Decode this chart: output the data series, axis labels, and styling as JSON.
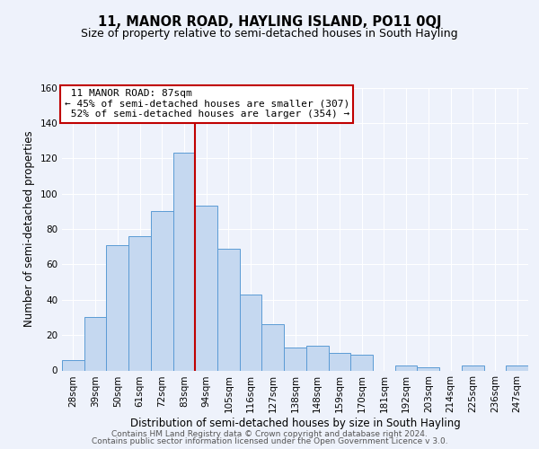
{
  "title": "11, MANOR ROAD, HAYLING ISLAND, PO11 0QJ",
  "subtitle": "Size of property relative to semi-detached houses in South Hayling",
  "xlabel": "Distribution of semi-detached houses by size in South Hayling",
  "ylabel": "Number of semi-detached properties",
  "footer_line1": "Contains HM Land Registry data © Crown copyright and database right 2024.",
  "footer_line2": "Contains public sector information licensed under the Open Government Licence v 3.0.",
  "categories": [
    "28sqm",
    "39sqm",
    "50sqm",
    "61sqm",
    "72sqm",
    "83sqm",
    "94sqm",
    "105sqm",
    "116sqm",
    "127sqm",
    "138sqm",
    "148sqm",
    "159sqm",
    "170sqm",
    "181sqm",
    "192sqm",
    "203sqm",
    "214sqm",
    "225sqm",
    "236sqm",
    "247sqm"
  ],
  "values": [
    6,
    30,
    71,
    76,
    90,
    123,
    93,
    69,
    43,
    26,
    13,
    14,
    10,
    9,
    0,
    3,
    2,
    0,
    3,
    0,
    3
  ],
  "bar_color": "#c5d8f0",
  "bar_edge_color": "#5b9bd5",
  "property_label": "11 MANOR ROAD: 87sqm",
  "pct_smaller": 45,
  "count_smaller": 307,
  "pct_larger": 52,
  "count_larger": 354,
  "vline_color": "#c00000",
  "vline_x_index": 5.5,
  "annotation_box_edge_color": "#c00000",
  "ylim": [
    0,
    160
  ],
  "yticks": [
    0,
    20,
    40,
    60,
    80,
    100,
    120,
    140,
    160
  ],
  "background_color": "#eef2fb",
  "grid_color": "#ffffff",
  "title_fontsize": 10.5,
  "subtitle_fontsize": 9,
  "axis_label_fontsize": 8.5,
  "tick_fontsize": 7.5,
  "annotation_fontsize": 8,
  "footer_fontsize": 6.5
}
